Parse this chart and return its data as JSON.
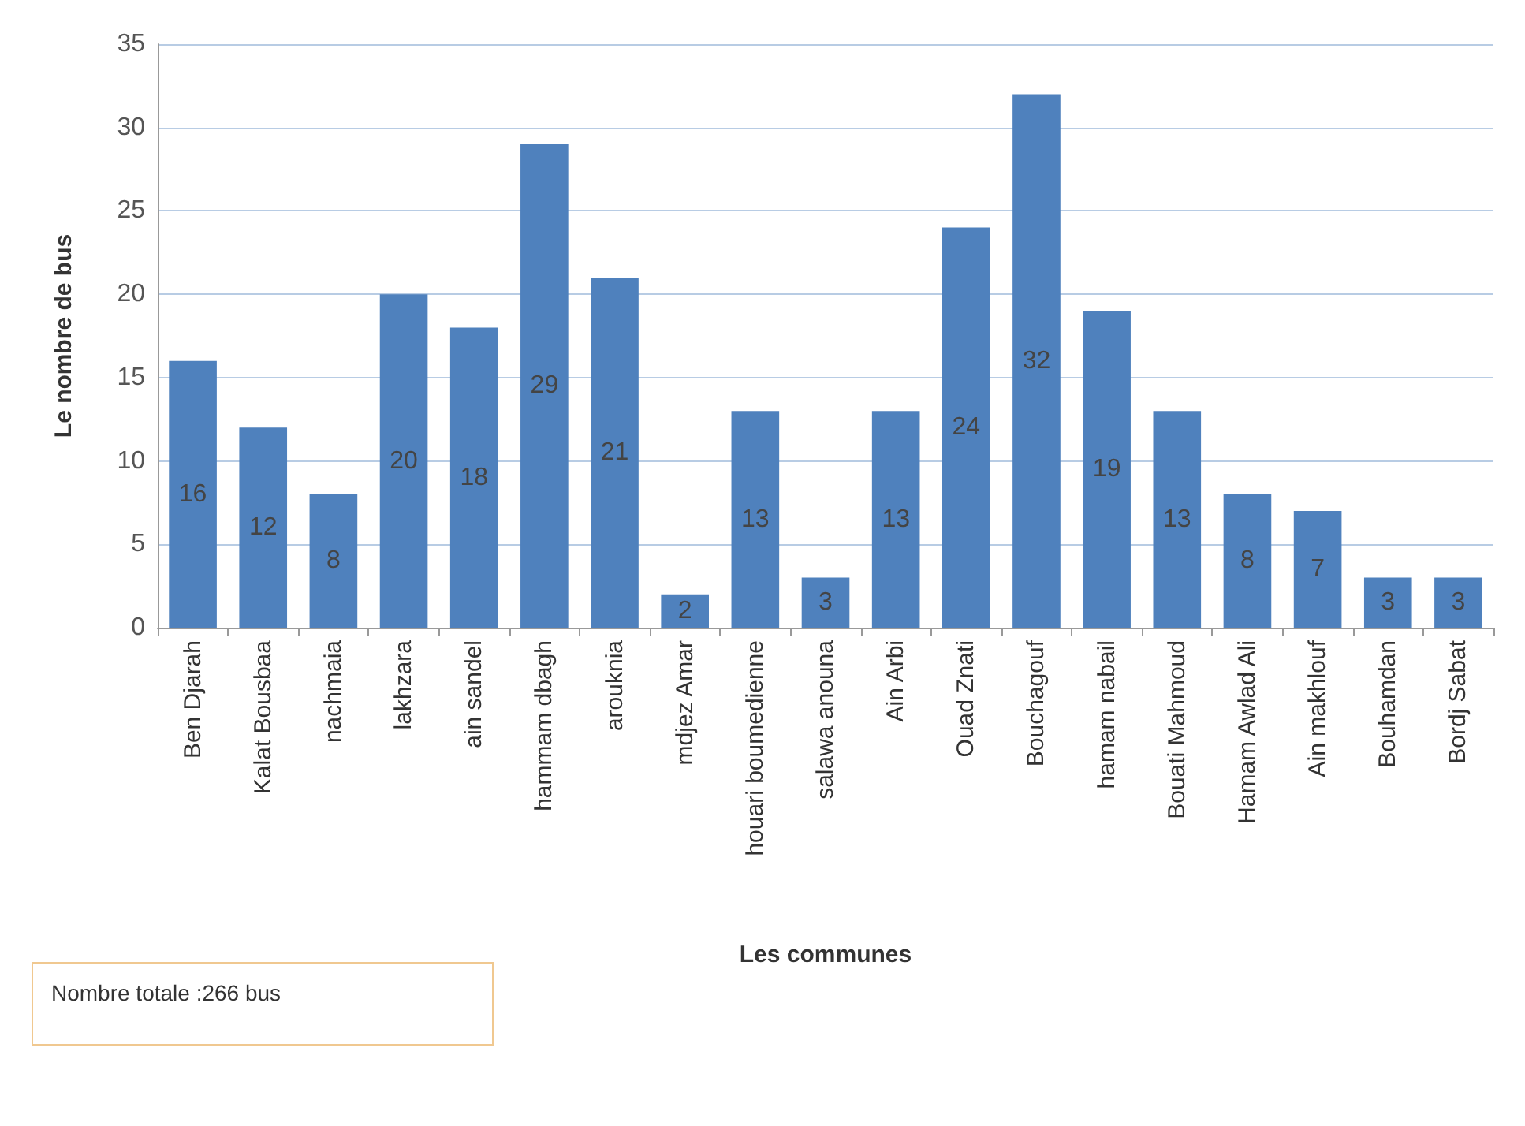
{
  "chart_data": {
    "type": "bar",
    "xlabel": "Les communes",
    "ylabel": "Le nombre de bus",
    "categories": [
      "Ben Djarah",
      "Kalat Bousbaa",
      "nachmaia",
      "lakhzara",
      "ain sandel",
      "hammam dbagh",
      "arouknia",
      "mdjez Amar",
      "houari boumedienne",
      "salawa anouna",
      "Ain Arbi",
      "Ouad Znati",
      "Bouchagouf",
      "hamam nabail",
      "Bouati Mahmoud",
      "Hamam Awlad Ali",
      "Ain makhlouf",
      "Bouhamdan",
      "Bordj Sabat"
    ],
    "values": [
      16,
      12,
      8,
      20,
      18,
      29,
      21,
      2,
      13,
      3,
      13,
      24,
      32,
      19,
      13,
      8,
      7,
      3,
      3
    ],
    "color": "#4f81bd",
    "ylim": [
      0,
      35
    ],
    "yticks": [
      0,
      5,
      10,
      15,
      20,
      25,
      30,
      35
    ],
    "grid": "y",
    "data_labels": true,
    "annotations": [
      "Nombre totale :266 bus"
    ]
  }
}
